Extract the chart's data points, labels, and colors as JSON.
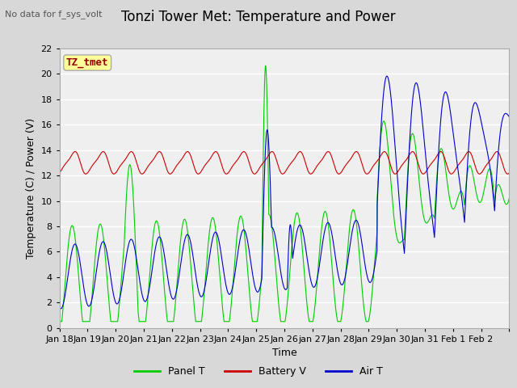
{
  "title": "Tonzi Tower Met: Temperature and Power",
  "subtitle": "No data for f_sys_volt",
  "xlabel": "Time",
  "ylabel": "Temperature (C) / Power (V)",
  "annotation": "TZ_tmet",
  "ylim": [
    0,
    22
  ],
  "yticks": [
    0,
    2,
    4,
    6,
    8,
    10,
    12,
    14,
    16,
    18,
    20,
    22
  ],
  "xtick_labels": [
    "Jan 18",
    "Jan 19",
    "Jan 20",
    "Jan 21",
    "Jan 22",
    "Jan 23",
    "Jan 24",
    "Jan 25",
    "Jan 26",
    "jan 27",
    "Jan 28",
    "Jan 29",
    "Jan 30",
    "Jan 31",
    "Feb 1",
    "Feb 2",
    ""
  ],
  "legend": [
    {
      "label": "Panel T",
      "color": "#00cc00"
    },
    {
      "label": "Battery V",
      "color": "#cc0000"
    },
    {
      "label": "Air T",
      "color": "#0000cc"
    }
  ],
  "panel_t_color": "#00cc00",
  "battery_v_color": "#cc0000",
  "air_t_color": "#0000cc",
  "bg_color": "#d8d8d8",
  "plot_bg_color": "#efefef",
  "annotation_bg": "#ffff99",
  "annotation_color": "#990000",
  "annotation_border": "#aaaaaa",
  "title_fontsize": 12,
  "axis_fontsize": 9,
  "tick_fontsize": 8
}
